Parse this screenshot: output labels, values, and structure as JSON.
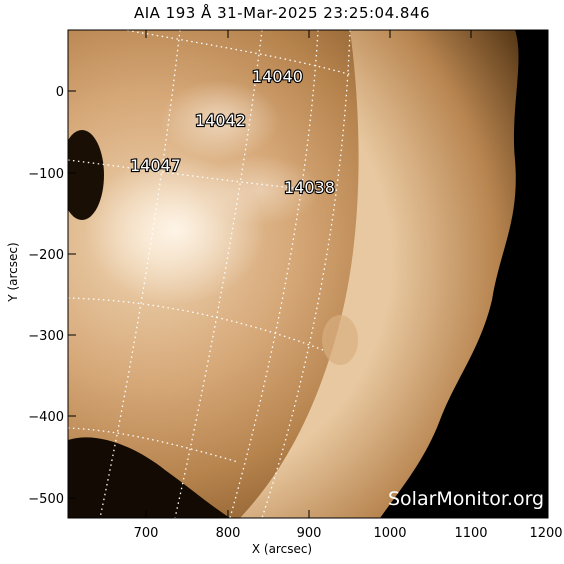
{
  "title": "AIA 193 Å 31-Mar-2025 23:25:04.846",
  "xlabel": "X (arcsec)",
  "ylabel": "Y (arcsec)",
  "credit": "SolarMonitor.org",
  "xticks": [
    "700",
    "800",
    "900",
    "1000",
    "1100",
    "1200"
  ],
  "yticks": [
    "0",
    "−100",
    "−200",
    "−300",
    "−400",
    "−500"
  ],
  "regions": [
    "14040",
    "14042",
    "14047",
    "14038"
  ],
  "colors": {
    "corona_bright": "#f3dcc0",
    "corona_mid": "#c89a64",
    "corona_dark": "#6e4a24",
    "space": "#000000",
    "grid": "#ffffff"
  }
}
